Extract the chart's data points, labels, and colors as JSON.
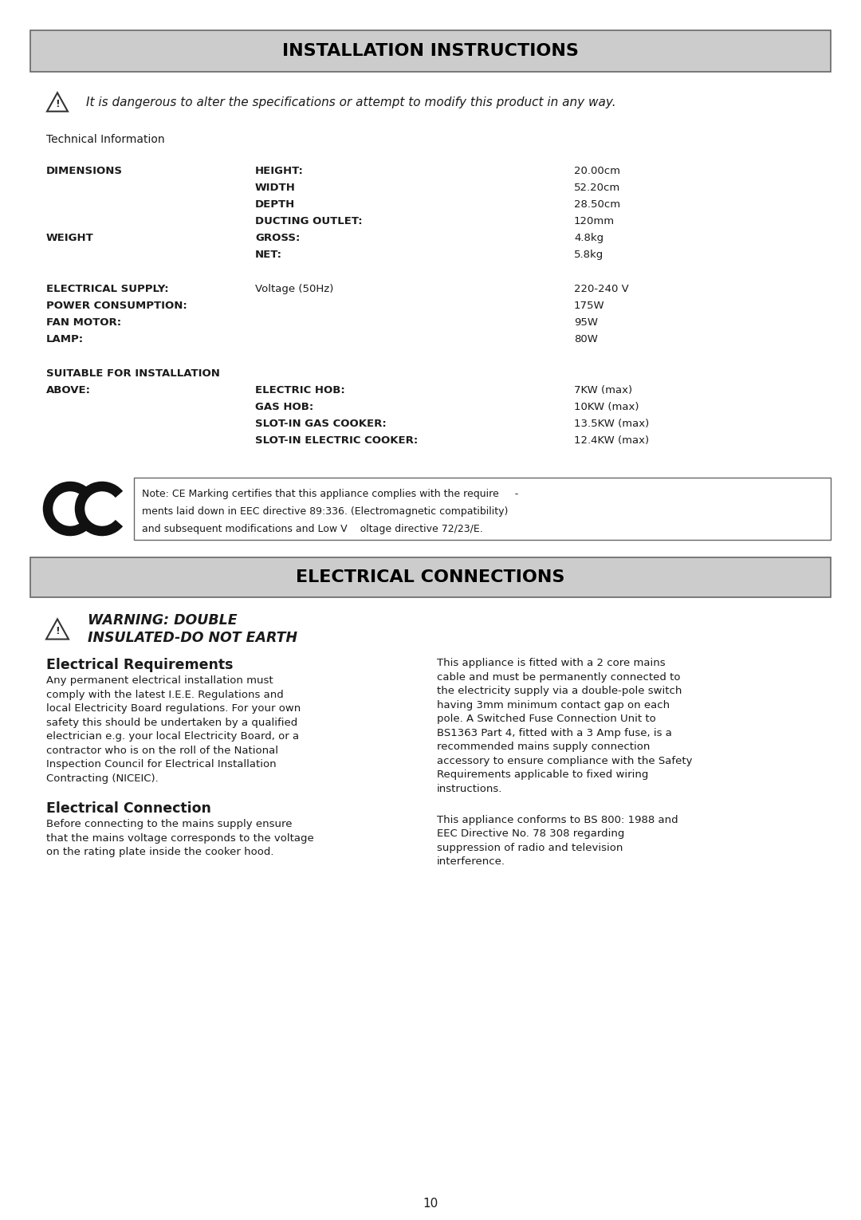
{
  "title1": "INSTALLATION INSTRUCTIONS",
  "title2": "ELECTRICAL CONNECTIONS",
  "warning1": "It is dangerous to alter the specifications or attempt to modify this product in any way.",
  "warning2_line1": "WARNING: DOUBLE",
  "warning2_line2": "INSULATED-DO NOT EARTH",
  "tech_info": "Technical Information",
  "dimensions_label": "DIMENSIONS",
  "dimensions_items": [
    [
      "HEIGHT:",
      "20.00cm"
    ],
    [
      "WIDTH",
      "52.20cm"
    ],
    [
      "DEPTH",
      "28.50cm"
    ],
    [
      "DUCTING OUTLET:",
      "120mm"
    ]
  ],
  "weight_label": "WEIGHT",
  "weight_items": [
    [
      "GROSS:",
      "4.8kg"
    ],
    [
      "NET:",
      "5.8kg"
    ]
  ],
  "electrical_label": "ELECTRICAL SUPPLY:",
  "electrical_sub_labels": [
    "POWER CONSUMPTION:",
    "FAN MOTOR:",
    "LAMP:"
  ],
  "electrical_mid": "Voltage (50Hz)",
  "electrical_values": [
    "220-240 V",
    "175W",
    "95W",
    "80W"
  ],
  "suitable_label": "SUITABLE FOR INSTALLATION",
  "above_label": "ABOVE:",
  "suitable_items": [
    [
      "ELECTRIC HOB:",
      "7KW (max)"
    ],
    [
      "GAS HOB:",
      "10KW (max)"
    ],
    [
      "SLOT-IN GAS COOKER:",
      "13.5KW (max)"
    ],
    [
      "SLOT-IN ELECTRIC COOKER:",
      "12.4KW (max)"
    ]
  ],
  "ce_note_line1": "Note: CE Marking certifies that this appliance complies with the require     -",
  "ce_note_line2": "ments laid down in EEC directive 89:336. (Electromagnetic compatibility)",
  "ce_note_line3": "and subsequent modifications and Low V    oltage directive 72/23/E.",
  "elec_req_title": "Electrical Requirements",
  "elec_req_lines": [
    "Any permanent electrical installation must",
    "comply with the latest I.E.E. Regulations and",
    "local Electricity Board regulations. For your own",
    "safety this should be undertaken by a qualified",
    "electrician e.g. your local Electricity Board, or a",
    "contractor who is on the roll of the National",
    "Inspection Council for Electrical Installation",
    "Contracting (NICEIC)."
  ],
  "elec_conn_title": "Electrical Connection",
  "elec_conn_lines": [
    "Before connecting to the mains supply ensure",
    "that the mains voltage corresponds to the voltage",
    "on the rating plate inside the cooker hood."
  ],
  "right_col_lines1": [
    "This appliance is fitted with a 2 core mains",
    "cable and must be permanently connected to",
    "the electricity supply via a double-pole switch",
    "having 3mm minimum contact gap on each",
    "pole. A Switched Fuse Connection Unit to",
    "BS1363 Part 4, fitted with a 3 Amp fuse, is a",
    "recommended mains supply connection",
    "accessory to ensure compliance with the Safety",
    "Requirements applicable to fixed wiring",
    "instructions."
  ],
  "right_col_lines2": [
    "This appliance conforms to BS 800: 1988 and",
    "EEC Directive No. 78 308 regarding",
    "suppression of radio and television",
    "interference."
  ],
  "page_number": "10",
  "bg_color": "#ffffff",
  "header_bg": "#cccccc",
  "text_color": "#1a1a1a",
  "header_text_color": "#000000",
  "border_color": "#666666"
}
